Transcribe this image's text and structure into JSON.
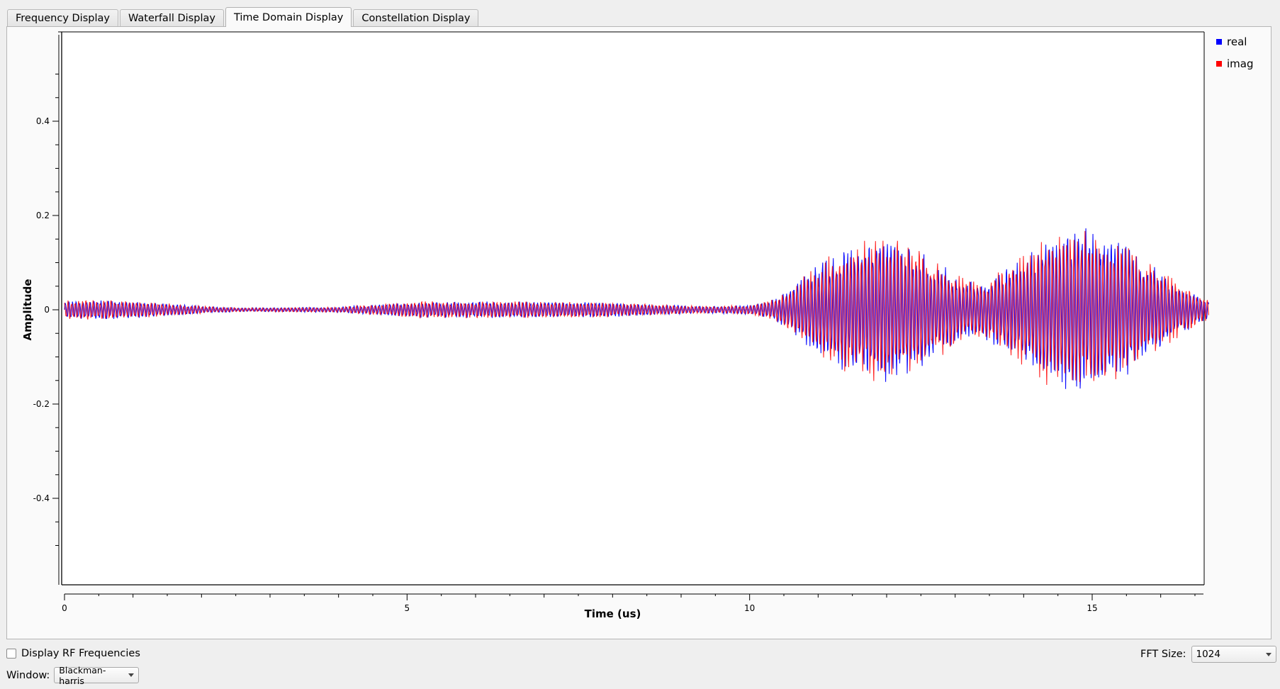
{
  "tabs": [
    {
      "label": "Frequency Display",
      "active": false
    },
    {
      "label": "Waterfall Display",
      "active": false
    },
    {
      "label": "Time Domain Display",
      "active": true
    },
    {
      "label": "Constellation Display",
      "active": false
    }
  ],
  "legend": {
    "real_label": "real",
    "imag_label": "imag",
    "real_color": "#0000ff",
    "imag_color": "#ff0000"
  },
  "controls": {
    "rf_checkbox_label": "Display RF Frequencies",
    "rf_checked": false,
    "fft_label": "FFT Size:",
    "fft_value": "1024",
    "window_label": "Window:",
    "window_value": "Blackman-harris"
  },
  "chart_data": {
    "type": "line",
    "xlabel": "Time (us)",
    "ylabel": "Amplitude",
    "xlim": [
      0,
      16.7
    ],
    "ylim": [
      -0.5,
      0.5
    ],
    "xticks": [
      "0",
      "5",
      "10",
      "15"
    ],
    "yticks": [
      "0.4",
      "0.2",
      "0",
      "-0.2",
      "-0.4"
    ],
    "grid": false,
    "legend_position": "top-right",
    "series": [
      {
        "name": "real",
        "color": "#0000ff",
        "envelope_t": [
          0,
          0.5,
          1.3,
          2.0,
          2.6,
          3.4,
          4.0,
          4.6,
          5.2,
          6.0,
          7.0,
          8.0,
          8.8,
          9.4,
          10.0,
          10.3,
          10.6,
          11.0,
          11.4,
          11.9,
          12.3,
          12.7,
          13.1,
          13.4,
          13.8,
          14.3,
          14.8,
          15.3,
          15.8,
          16.3,
          16.7
        ],
        "envelope_a": [
          0.02,
          0.022,
          0.016,
          0.008,
          0.004,
          0.005,
          0.006,
          0.012,
          0.018,
          0.018,
          0.018,
          0.016,
          0.01,
          0.008,
          0.01,
          0.02,
          0.045,
          0.1,
          0.14,
          0.16,
          0.15,
          0.11,
          0.07,
          0.06,
          0.1,
          0.16,
          0.18,
          0.16,
          0.11,
          0.055,
          0.02
        ]
      },
      {
        "name": "imag",
        "color": "#ff0000",
        "envelope_t": [
          0,
          0.5,
          1.3,
          2.0,
          2.6,
          3.4,
          4.0,
          4.6,
          5.2,
          6.0,
          7.0,
          8.0,
          8.8,
          9.4,
          10.0,
          10.3,
          10.6,
          11.0,
          11.4,
          11.9,
          12.3,
          12.7,
          13.1,
          13.4,
          13.8,
          14.3,
          14.8,
          15.3,
          15.8,
          16.3,
          16.7
        ],
        "envelope_a": [
          0.02,
          0.022,
          0.016,
          0.008,
          0.004,
          0.005,
          0.006,
          0.012,
          0.018,
          0.018,
          0.018,
          0.016,
          0.01,
          0.008,
          0.01,
          0.02,
          0.045,
          0.1,
          0.14,
          0.16,
          0.15,
          0.11,
          0.07,
          0.06,
          0.1,
          0.16,
          0.18,
          0.16,
          0.11,
          0.055,
          0.02
        ]
      }
    ],
    "carrier_cycles_per_us": 19
  }
}
